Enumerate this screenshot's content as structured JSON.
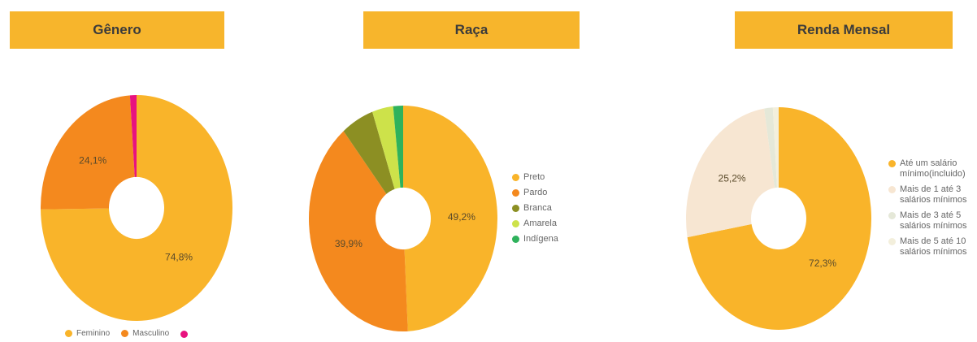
{
  "chart_data": [
    {
      "type": "pie",
      "title": "Gênero",
      "slices": [
        {
          "label": "Feminino",
          "value": 74.8,
          "color": "#f9b42a",
          "shown_label": "74,8%"
        },
        {
          "label": "Masculino",
          "value": 24.1,
          "color": "#f4891e",
          "shown_label": "24,1%"
        },
        {
          "label": "",
          "value": 1.1,
          "color": "#e8127f",
          "shown_label": ""
        }
      ]
    },
    {
      "type": "pie",
      "title": "Raça",
      "slices": [
        {
          "label": "Preto",
          "value": 49.2,
          "color": "#f9b42a",
          "shown_label": "49,2%"
        },
        {
          "label": "Pardo",
          "value": 39.9,
          "color": "#f4891e",
          "shown_label": "39,9%"
        },
        {
          "label": "Branca",
          "value": 5.6,
          "color": "#8c8f23",
          "shown_label": ""
        },
        {
          "label": "Amarela",
          "value": 3.6,
          "color": "#cde24a",
          "shown_label": ""
        },
        {
          "label": "Indígena",
          "value": 1.7,
          "color": "#2fb25c",
          "shown_label": ""
        }
      ]
    },
    {
      "type": "pie",
      "title": "Renda Mensal",
      "slices": [
        {
          "label": "Até um salário mínimo(incluido)",
          "value": 72.3,
          "color": "#f9b42a",
          "shown_label": "72,3%"
        },
        {
          "label": "Mais de 1 até 3 salários mínimos",
          "value": 25.2,
          "color": "#f7e6d2",
          "shown_label": "25,2%"
        },
        {
          "label": "Mais de 3 até 5 salários mínimos",
          "value": 1.5,
          "color": "#e5e8d8",
          "shown_label": ""
        },
        {
          "label": "Mais de 5 até 10 salários mínimos",
          "value": 1.0,
          "color": "#f3efdc",
          "shown_label": ""
        }
      ]
    }
  ]
}
